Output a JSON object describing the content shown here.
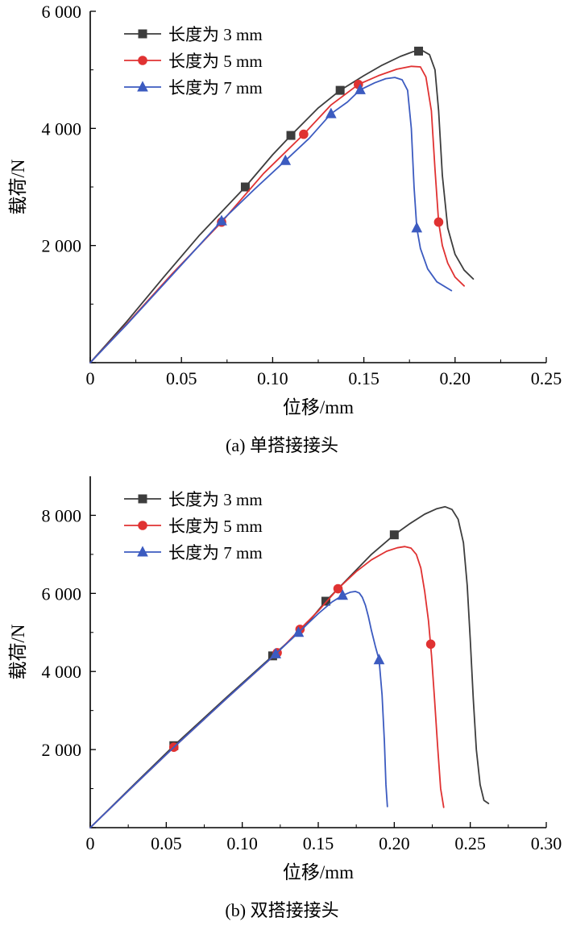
{
  "chart_data": [
    {
      "type": "line",
      "title": "(a) 单搭接接头",
      "xlabel": "位移/mm",
      "ylabel": "载荷/N",
      "xlim": [
        0,
        0.25
      ],
      "ylim": [
        0,
        6000
      ],
      "xticks": [
        0,
        0.05,
        0.1,
        0.15,
        0.2,
        0.25
      ],
      "xtick_labels": [
        "0",
        "0.05",
        "0.10",
        "0.15",
        "0.20",
        "0.25"
      ],
      "yticks": [
        0,
        2000,
        4000,
        6000
      ],
      "ytick_labels": [
        "",
        "2 000",
        "4 000",
        "6 000"
      ],
      "legend_position": "top-left",
      "grid": false,
      "series": [
        {
          "name": "长度为 3 mm",
          "color": "#3d3d3d",
          "marker": "square",
          "x": [
            0,
            0.02,
            0.04,
            0.06,
            0.085,
            0.1,
            0.11,
            0.125,
            0.137,
            0.15,
            0.16,
            0.17,
            0.177,
            0.182,
            0.186,
            0.189,
            0.191,
            0.193,
            0.196,
            0.2,
            0.205,
            0.21
          ],
          "y": [
            0,
            700,
            1450,
            2180,
            3000,
            3550,
            3880,
            4350,
            4650,
            4900,
            5080,
            5230,
            5310,
            5330,
            5260,
            5000,
            4300,
            3200,
            2300,
            1850,
            1580,
            1430
          ],
          "marker_points": [
            [
              0.085,
              3000
            ],
            [
              0.11,
              3880
            ],
            [
              0.137,
              4650
            ],
            [
              0.18,
              5320
            ]
          ]
        },
        {
          "name": "长度为 5 mm",
          "color": "#e03232",
          "marker": "circle",
          "x": [
            0,
            0.02,
            0.045,
            0.072,
            0.095,
            0.117,
            0.132,
            0.147,
            0.158,
            0.168,
            0.176,
            0.181,
            0.184,
            0.187,
            0.189,
            0.191,
            0.193,
            0.196,
            0.2,
            0.205
          ],
          "y": [
            0,
            660,
            1520,
            2400,
            3230,
            3900,
            4400,
            4750,
            4900,
            5010,
            5060,
            5050,
            4880,
            4300,
            3300,
            2400,
            2000,
            1700,
            1460,
            1310
          ],
          "marker_points": [
            [
              0.072,
              2400
            ],
            [
              0.117,
              3900
            ],
            [
              0.147,
              4750
            ],
            [
              0.191,
              2400
            ]
          ]
        },
        {
          "name": "长度为 7 mm",
          "color": "#3c5bc0",
          "marker": "triangle",
          "x": [
            0,
            0.02,
            0.045,
            0.072,
            0.09,
            0.107,
            0.12,
            0.132,
            0.141,
            0.148,
            0.156,
            0.162,
            0.167,
            0.171,
            0.174,
            0.176,
            0.1775,
            0.179,
            0.181,
            0.185,
            0.19,
            0.198
          ],
          "y": [
            0,
            650,
            1500,
            2420,
            2960,
            3450,
            3830,
            4250,
            4450,
            4660,
            4780,
            4850,
            4870,
            4830,
            4650,
            4000,
            3000,
            2300,
            1950,
            1600,
            1380,
            1230
          ],
          "marker_points": [
            [
              0.072,
              2420
            ],
            [
              0.107,
              3450
            ],
            [
              0.132,
              4250
            ],
            [
              0.148,
              4660
            ],
            [
              0.179,
              2300
            ]
          ]
        }
      ]
    },
    {
      "type": "line",
      "title": "(b) 双搭接接头",
      "xlabel": "位移/mm",
      "ylabel": "载荷/N",
      "xlim": [
        0,
        0.3
      ],
      "ylim": [
        0,
        9000
      ],
      "xticks": [
        0,
        0.05,
        0.1,
        0.15,
        0.2,
        0.25,
        0.3
      ],
      "xtick_labels": [
        "0",
        "0.05",
        "0.10",
        "0.15",
        "0.20",
        "0.25",
        "0.30"
      ],
      "yticks": [
        0,
        2000,
        4000,
        6000,
        8000
      ],
      "ytick_labels": [
        "",
        "2 000",
        "4 000",
        "6 000",
        "8 000"
      ],
      "legend_position": "top-left",
      "grid": false,
      "series": [
        {
          "name": "长度为 3 mm",
          "color": "#3d3d3d",
          "marker": "square",
          "x": [
            0,
            0.03,
            0.055,
            0.09,
            0.12,
            0.14,
            0.155,
            0.17,
            0.185,
            0.2,
            0.21,
            0.22,
            0.228,
            0.2335,
            0.238,
            0.242,
            0.2455,
            0.248,
            0.25,
            0.252,
            0.254,
            0.2565,
            0.259,
            0.262
          ],
          "y": [
            0,
            1150,
            2100,
            3350,
            4400,
            5100,
            5800,
            6400,
            7000,
            7500,
            7780,
            8030,
            8170,
            8220,
            8150,
            7900,
            7300,
            6200,
            4800,
            3300,
            2000,
            1100,
            700,
            620
          ],
          "marker_points": [
            [
              0.055,
              2100
            ],
            [
              0.12,
              4400
            ],
            [
              0.155,
              5800
            ],
            [
              0.2,
              7500
            ]
          ]
        },
        {
          "name": "长度为 5 mm",
          "color": "#e03232",
          "marker": "circle",
          "x": [
            0,
            0.03,
            0.055,
            0.09,
            0.123,
            0.138,
            0.15,
            0.163,
            0.175,
            0.185,
            0.195,
            0.202,
            0.207,
            0.211,
            0.2145,
            0.2175,
            0.22,
            0.2225,
            0.2245,
            0.2265,
            0.2285,
            0.2305,
            0.2325
          ],
          "y": [
            0,
            1130,
            2060,
            3320,
            4480,
            5080,
            5550,
            6120,
            6560,
            6860,
            7080,
            7170,
            7200,
            7160,
            7000,
            6650,
            6050,
            5300,
            4400,
            3300,
            2100,
            1000,
            520
          ],
          "marker_points": [
            [
              0.055,
              2060
            ],
            [
              0.123,
              4480
            ],
            [
              0.138,
              5080
            ],
            [
              0.163,
              6120
            ],
            [
              0.224,
              4700
            ]
          ]
        },
        {
          "name": "长度为 7 mm",
          "color": "#3c5bc0",
          "marker": "triangle",
          "x": [
            0,
            0.03,
            0.055,
            0.09,
            0.122,
            0.137,
            0.15,
            0.159,
            0.166,
            0.171,
            0.1745,
            0.177,
            0.179,
            0.181,
            0.183,
            0.185,
            0.1875,
            0.19,
            0.192,
            0.1935,
            0.1945,
            0.1955
          ],
          "y": [
            0,
            1130,
            2060,
            3320,
            4450,
            5000,
            5480,
            5780,
            5950,
            6030,
            6050,
            6010,
            5900,
            5700,
            5400,
            5050,
            4650,
            4300,
            3400,
            2200,
            1100,
            540
          ],
          "marker_points": [
            [
              0.122,
              4450
            ],
            [
              0.137,
              5000
            ],
            [
              0.166,
              5950
            ],
            [
              0.19,
              4300
            ]
          ]
        }
      ]
    }
  ]
}
